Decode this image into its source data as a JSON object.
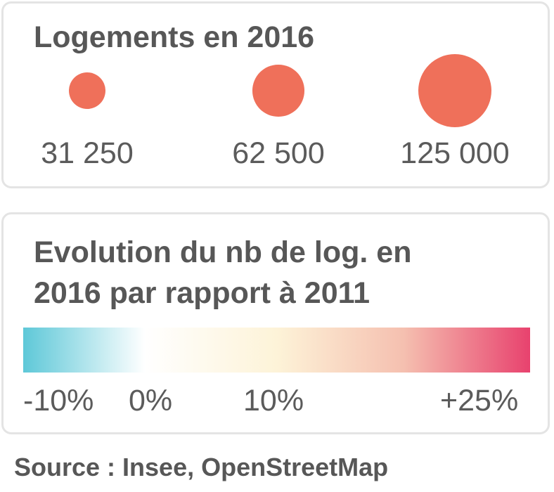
{
  "size_legend": {
    "title": "Logements en 2016",
    "color": "#ef705a",
    "items": [
      {
        "label": "31 250",
        "value": 31250
      },
      {
        "label": "62 500",
        "value": 62500
      },
      {
        "label": "125 000",
        "value": 125000
      }
    ]
  },
  "color_legend": {
    "title_line1": "Evolution du nb de log. en",
    "title_line2": "2016 par rapport à 2011",
    "gradient_colors": [
      "#5ec8d8",
      "#ffffff",
      "#fdf3d8",
      "#f5c0b0",
      "#e8426e"
    ],
    "ticks": [
      {
        "label": "-10%",
        "value": -10
      },
      {
        "label": "0%",
        "value": 0
      },
      {
        "label": "10%",
        "value": 10
      },
      {
        "label": "+25%",
        "value": 25
      }
    ]
  },
  "source": "Source : Insee, OpenStreetMap"
}
